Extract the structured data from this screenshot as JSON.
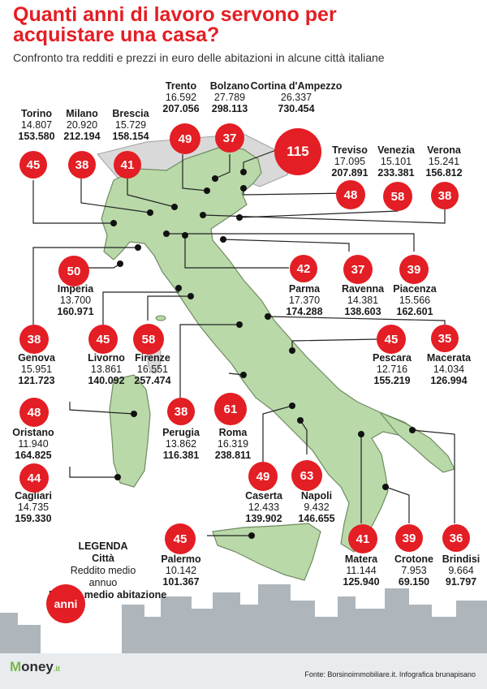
{
  "title": "Quanti anni di lavoro servono per acquistare una casa?",
  "subtitle": "Confronto tra redditi e prezzi in euro delle abitazioni in alcune città italiane",
  "colors": {
    "accent": "#e31e24",
    "land": "#b9d9a8",
    "land_stroke": "#6f8c63",
    "skyline": "#aeb6bc",
    "logo_green": "#7ab648"
  },
  "cities": [
    {
      "name": "Torino",
      "income": "14.807",
      "price": "153.580",
      "years": "45"
    },
    {
      "name": "Milano",
      "income": "20.920",
      "price": "212.194",
      "years": "38"
    },
    {
      "name": "Brescia",
      "income": "15.729",
      "price": "158.154",
      "years": "41"
    },
    {
      "name": "Trento",
      "income": "16.592",
      "price": "207.056",
      "years": "49"
    },
    {
      "name": "Bolzano",
      "income": "27.789",
      "price": "298.113",
      "years": "37"
    },
    {
      "name": "Cortina d'Ampezzo",
      "income": "26.337",
      "price": "730.454",
      "years": "115"
    },
    {
      "name": "Treviso",
      "income": "17.095",
      "price": "207.891",
      "years": "48"
    },
    {
      "name": "Venezia",
      "income": "15.101",
      "price": "233.381",
      "years": "58"
    },
    {
      "name": "Verona",
      "income": "15.241",
      "price": "156.812",
      "years": "38"
    },
    {
      "name": "Imperia",
      "income": "13.700",
      "price": "160.971",
      "years": "50"
    },
    {
      "name": "Parma",
      "income": "17.370",
      "price": "174.288",
      "years": "42"
    },
    {
      "name": "Ravenna",
      "income": "14.381",
      "price": "138.603",
      "years": "37"
    },
    {
      "name": "Piacenza",
      "income": "15.566",
      "price": "162.601",
      "years": "39"
    },
    {
      "name": "Genova",
      "income": "15.951",
      "price": "121.723",
      "years": "38"
    },
    {
      "name": "Livorno",
      "income": "13.861",
      "price": "140.092",
      "years": "45"
    },
    {
      "name": "Firenze",
      "income": "16.551",
      "price": "257.474",
      "years": "58"
    },
    {
      "name": "Pescara",
      "income": "12.716",
      "price": "155.219",
      "years": "45"
    },
    {
      "name": "Macerata",
      "income": "14.034",
      "price": "126.994",
      "years": "35"
    },
    {
      "name": "Oristano",
      "income": "11.940",
      "price": "164.825",
      "years": "48"
    },
    {
      "name": "Perugia",
      "income": "13.862",
      "price": "116.381",
      "years": "38"
    },
    {
      "name": "Roma",
      "income": "16.319",
      "price": "238.811",
      "years": "61"
    },
    {
      "name": "Cagliari",
      "income": "14.735",
      "price": "159.330",
      "years": "44"
    },
    {
      "name": "Caserta",
      "income": "12.433",
      "price": "139.902",
      "years": "49"
    },
    {
      "name": "Napoli",
      "income": "9.432",
      "price": "146.655",
      "years": "63"
    },
    {
      "name": "Palermo",
      "income": "10.142",
      "price": "101.367",
      "years": "45"
    },
    {
      "name": "Matera",
      "income": "11.144",
      "price": "125.940",
      "years": "41"
    },
    {
      "name": "Crotone",
      "income": "7.953",
      "price": "69.150",
      "years": "39"
    },
    {
      "name": "Brindisi",
      "income": "9.664",
      "price": "91.797",
      "years": "36"
    }
  ],
  "legend": {
    "title": "LEGENDA",
    "city": "Città",
    "income": "Reddito medio annuo",
    "price": "Prezzo medio abitazione",
    "bubble": "anni"
  },
  "footer": {
    "logo_m": "M",
    "logo_rest": "oney",
    "logo_suffix": ".it",
    "source": "Fonte: Borsinoimmobiliare.it. Infografica brunapisano"
  }
}
